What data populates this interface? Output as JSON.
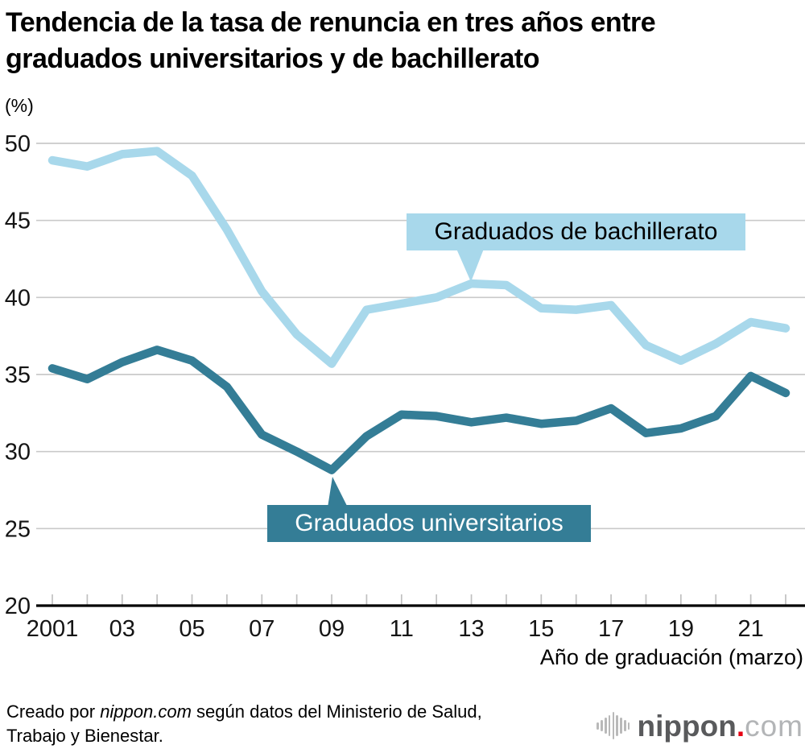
{
  "title": {
    "line1": "Tendencia de la tasa de renuncia en tres años entre",
    "line2": "graduados universitarios y de bachillerato"
  },
  "chart_data": {
    "type": "line",
    "x": [
      2001,
      2002,
      2003,
      2004,
      2005,
      2006,
      2007,
      2008,
      2009,
      2010,
      2011,
      2012,
      2013,
      2014,
      2015,
      2016,
      2017,
      2018,
      2019,
      2020,
      2021,
      2022
    ],
    "series": [
      {
        "name": "Graduados de bachillerato",
        "color": "#a8d8eb",
        "values": [
          48.9,
          48.5,
          49.3,
          49.5,
          47.9,
          44.4,
          40.4,
          37.6,
          35.7,
          39.2,
          39.6,
          40.0,
          40.9,
          40.8,
          39.3,
          39.2,
          39.5,
          36.9,
          35.9,
          37.0,
          38.4,
          38.0
        ]
      },
      {
        "name": "Graduados universitarios",
        "color": "#347d96",
        "values": [
          35.4,
          34.7,
          35.8,
          36.6,
          35.9,
          34.2,
          31.1,
          30.0,
          28.8,
          31.0,
          32.4,
          32.3,
          31.9,
          32.2,
          31.8,
          32.0,
          32.8,
          31.2,
          31.5,
          32.3,
          34.9,
          33.8
        ]
      }
    ],
    "ylabel": "(%)",
    "xlabel": "Año de graduación (marzo)",
    "ylim": [
      20,
      50
    ],
    "yticks": [
      50,
      45,
      40,
      35,
      30,
      25,
      20
    ],
    "xtick_years": [
      2001,
      2003,
      2005,
      2007,
      2009,
      2011,
      2013,
      2015,
      2017,
      2019,
      2021
    ],
    "xtick_labels": [
      "2001",
      "03",
      "05",
      "07",
      "09",
      "11",
      "13",
      "15",
      "17",
      "19",
      "21"
    ],
    "grid": true,
    "legend_position": "callouts-on-chart",
    "annotations": [
      {
        "text": "Graduados de bachillerato",
        "series": 0,
        "target_year": 2013
      },
      {
        "text": "Graduados universitarios",
        "series": 1,
        "target_year": 2009
      }
    ]
  },
  "colors": {
    "grid": "#c9c9c9",
    "tick": "#c0c0c0",
    "axis": "#000000",
    "light_series": "#a8d8eb",
    "dark_series": "#347d96",
    "logo_red": "#e60012"
  },
  "footer": {
    "credit_prefix": "Creado por ",
    "credit_brand": "nippon.com",
    "credit_suffix": " según datos del Ministerio de Salud,",
    "credit_line2": "Trabajo y Bienestar."
  },
  "logo": {
    "wordmark": "nippon",
    "dot": ".",
    "tld": "com"
  }
}
